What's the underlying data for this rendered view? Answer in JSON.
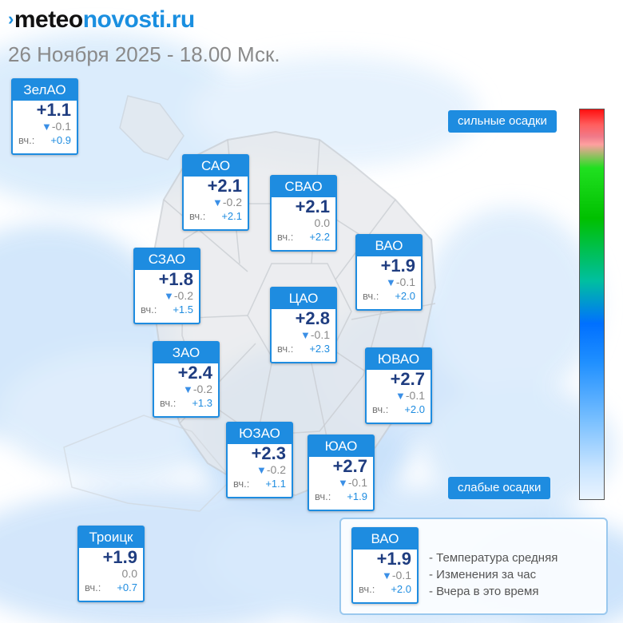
{
  "logo": {
    "part1": "meteo",
    "part2": "novosti.ru"
  },
  "date_line": "26 Ноября 2025 - 18.00 Мск.",
  "yesterday_label": "вч.:",
  "districts": [
    {
      "name": "ЗелАО",
      "temp": "+1.1",
      "change": "-0.1",
      "change_dir": "down",
      "yesterday": "+0.9"
    },
    {
      "name": "САО",
      "temp": "+2.1",
      "change": "-0.2",
      "change_dir": "down",
      "yesterday": "+2.1"
    },
    {
      "name": "СВАО",
      "temp": "+2.1",
      "change": "0.0",
      "change_dir": "none",
      "yesterday": "+2.2"
    },
    {
      "name": "ВАО",
      "temp": "+1.9",
      "change": "-0.1",
      "change_dir": "down",
      "yesterday": "+2.0"
    },
    {
      "name": "СЗАО",
      "temp": "+1.8",
      "change": "-0.2",
      "change_dir": "down",
      "yesterday": "+1.5"
    },
    {
      "name": "ЦАО",
      "temp": "+2.8",
      "change": "-0.1",
      "change_dir": "down",
      "yesterday": "+2.3"
    },
    {
      "name": "ЗАО",
      "temp": "+2.4",
      "change": "-0.2",
      "change_dir": "down",
      "yesterday": "+1.3"
    },
    {
      "name": "ЮВАО",
      "temp": "+2.7",
      "change": "-0.1",
      "change_dir": "down",
      "yesterday": "+2.0"
    },
    {
      "name": "ЮЗАО",
      "temp": "+2.3",
      "change": "-0.2",
      "change_dir": "down",
      "yesterday": "+1.1"
    },
    {
      "name": "ЮАО",
      "temp": "+2.7",
      "change": "-0.1",
      "change_dir": "down",
      "yesterday": "+1.9"
    },
    {
      "name": "Троицк",
      "temp": "+1.9",
      "change": "0.0",
      "change_dir": "none",
      "yesterday": "+0.7"
    }
  ],
  "scale": {
    "top_label": "сильные осадки",
    "bottom_label": "слабые осадки"
  },
  "legend": {
    "sample": {
      "name": "ВАО",
      "temp": "+1.9",
      "change": "-0.1",
      "change_dir": "down",
      "yesterday": "+2.0"
    },
    "lines": [
      "- Температура средняя",
      "- Изменения за час",
      "- Вчера в это время"
    ]
  },
  "colors": {
    "accent": "#1e8ce0",
    "temp_text": "#1f3d80"
  },
  "icons": {
    "trend": "down-triangle-icon"
  }
}
